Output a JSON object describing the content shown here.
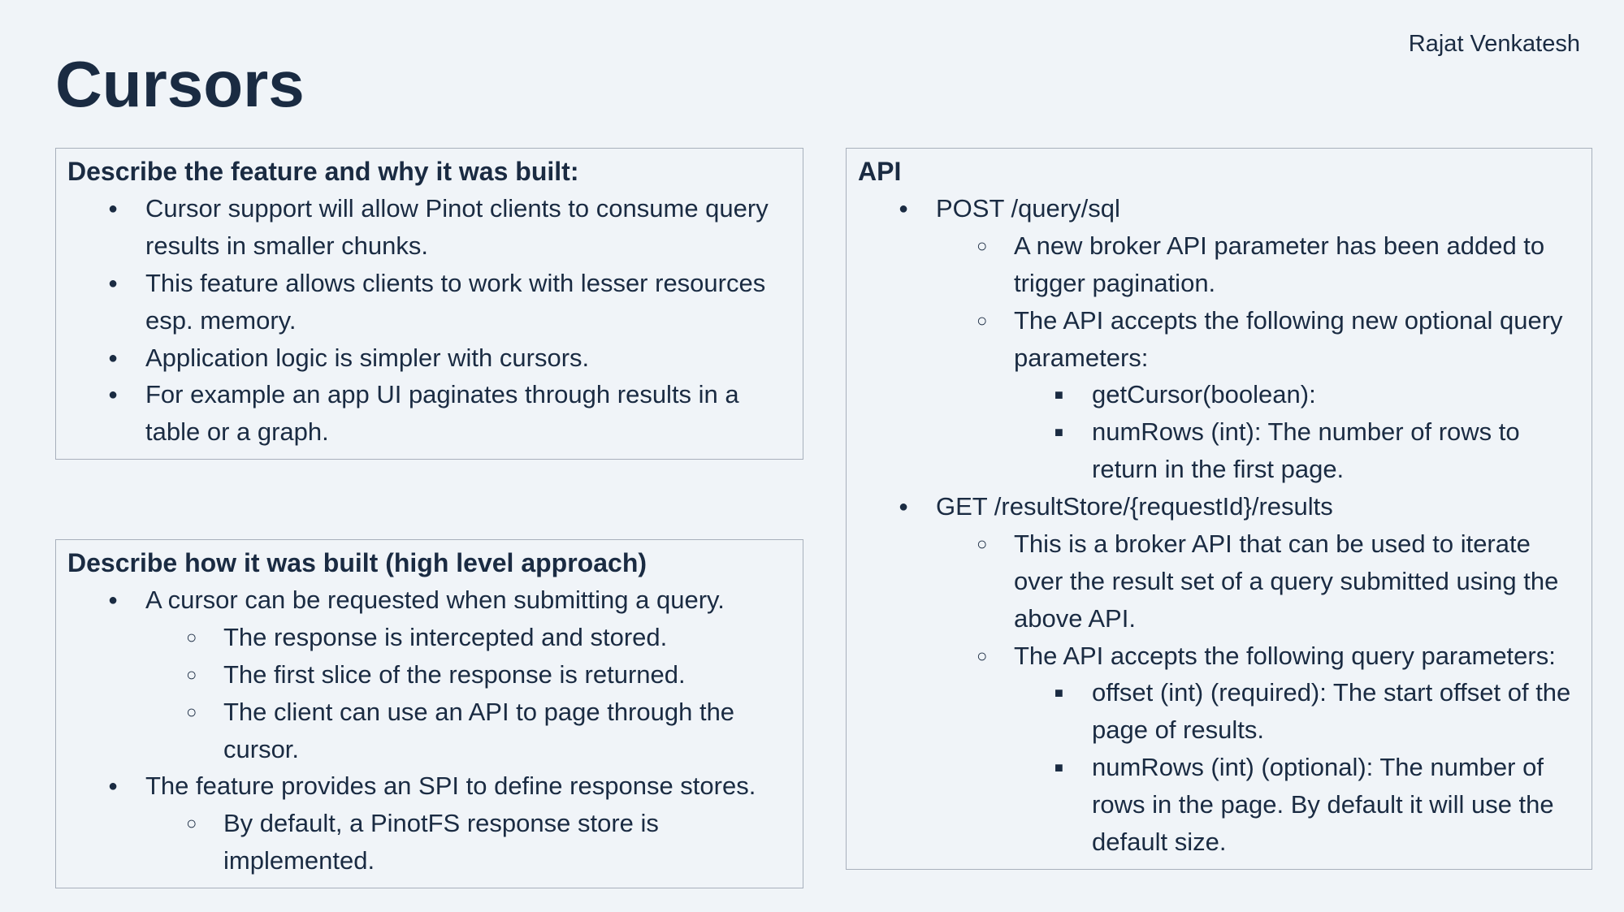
{
  "author": "Rajat Venkatesh",
  "title": "Cursors",
  "colors": {
    "background": "#f0f4f8",
    "text": "#1a2b42",
    "border": "#a8b0bc"
  },
  "box1": {
    "heading": "Describe the feature and why it was built:",
    "items": [
      "Cursor support will allow Pinot clients to consume query results in smaller chunks.",
      " This feature allows clients to work with lesser resources esp. memory.",
      "Application logic is simpler with cursors.",
      "For example an app UI paginates through results in a table or a graph."
    ]
  },
  "box2": {
    "heading": "Describe how it was built (high level approach)",
    "item1": "A cursor can be requested when submitting a query.",
    "item1_sub": [
      "The response is intercepted and stored.",
      "The first slice of the response is returned.",
      "The client can use an API to page through the cursor."
    ],
    "item2": "The feature provides an SPI to define response stores.",
    "item2_sub": [
      "By default, a PinotFS response store is implemented."
    ]
  },
  "box3": {
    "heading": "API",
    "api1": {
      "endpoint": "POST /query/sql",
      "desc1": "A new broker API parameter has been added to trigger pagination.",
      "desc2": "The API accepts the following new optional query parameters:",
      "params": [
        "getCursor(boolean):",
        "numRows (int): The number of rows to return in the first page."
      ]
    },
    "api2": {
      "endpoint": "GET /resultStore/{requestId}/results",
      "desc1": "This is a broker API that can be used to iterate over the result set of a query submitted using the above API.",
      "desc2": "The API accepts the following query parameters:",
      "params": [
        "offset (int) (required): The start offset of the page of results.",
        "numRows (int) (optional): The number of rows in the page. By default it will use the default size."
      ]
    }
  }
}
